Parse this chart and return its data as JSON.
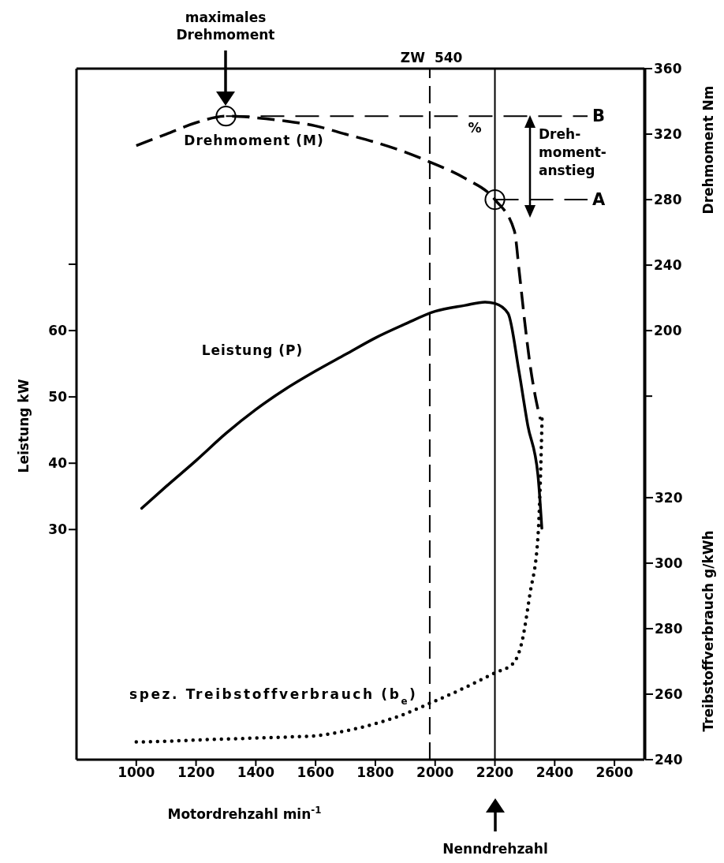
{
  "chart_data": {
    "type": "line",
    "xlabel": "Motordrehzahl min$^{-1}$",
    "ylabel": "Leistung kW",
    "y2label": "Drehmoment Nm",
    "y3label": "Treibstoffverbrauch g/kWh",
    "xlim": [
      800,
      2700
    ],
    "xticks": [
      1000,
      1200,
      1400,
      1600,
      1800,
      2000,
      2200,
      2400,
      2600
    ],
    "ylim": [
      -4.7,
      99.5
    ],
    "yticks": [
      30,
      40,
      50,
      60,
      {
        "value": 70,
        "label": null
      }
    ],
    "y2lim": [
      -62,
      360
    ],
    "y2ticks": [
      {
        "value": 160,
        "label": null
      },
      200,
      240,
      280,
      320,
      360
    ],
    "y3lim": [
      240,
      451
    ],
    "y3ticks": [
      240,
      260,
      280,
      300,
      320
    ],
    "grid": false,
    "marker": "none",
    "series": [
      {
        "name": "Drehmoment (M)",
        "color": "#000000",
        "axis": "y2",
        "line_style": "dashed",
        "x": [
          1000,
          1100,
          1200,
          1300,
          1400,
          1500,
          1600,
          1700,
          1800,
          1900,
          1982,
          2100,
          2200,
          2265,
          2282,
          2300,
          2317,
          2335,
          2352
        ],
        "values": [
          313,
          320,
          327,
          331,
          330,
          328,
          325,
          320,
          315,
          309,
          303,
          293,
          280,
          261,
          235,
          205,
          180,
          160,
          146
        ]
      },
      {
        "name": "Leistung (P)",
        "color": "#000000",
        "axis": "y",
        "line_style": "solid",
        "x": [
          1018,
          1100,
          1200,
          1300,
          1400,
          1500,
          1600,
          1700,
          1800,
          1900,
          2000,
          2100,
          2167,
          2200,
          2244,
          2280,
          2310,
          2344,
          2357
        ],
        "values": [
          33.2,
          36.5,
          40.4,
          44.5,
          48.1,
          51.2,
          53.9,
          56.4,
          58.9,
          61,
          62.9,
          63.8,
          64.3,
          64.1,
          62.6,
          54,
          45.7,
          38.2,
          30.2
        ]
      },
      {
        "name": "spez. Treibstoffverbrauch (b$_{e}$)",
        "color": "#000000",
        "axis": "y3",
        "line_style": "dotted",
        "x": [
          1000,
          1100,
          1200,
          1300,
          1400,
          1500,
          1600,
          1700,
          1800,
          1900,
          1982,
          2100,
          2200,
          2259,
          2291,
          2317,
          2344,
          2352,
          2358
        ],
        "values": [
          245.4,
          245.6,
          246,
          246.3,
          246.6,
          246.9,
          247.3,
          248.8,
          251,
          254,
          257.2,
          262,
          266.5,
          269.2,
          276.2,
          290.5,
          308,
          325,
          345
        ]
      },
      {
        "type": "scatter",
        "color": "#000000",
        "axis": "y2",
        "marker": "circle",
        "x": [
          1300,
          2200
        ],
        "values": [
          331,
          280
        ]
      }
    ],
    "ref_lines": [
      {
        "axis": "x",
        "value": 1982,
        "label": "ZW 540",
        "line_style": "dashed"
      },
      {
        "axis": "x",
        "value": 2200,
        "line_style": "solid"
      },
      {
        "axis": "y2",
        "value": 331,
        "label": "B",
        "line_style": "dashed"
      },
      {
        "axis": "y2",
        "value": 280,
        "label": "A",
        "line_style": "dashed"
      }
    ],
    "annotations": [
      "maximales\nDrehmoment",
      "Nenndrehzahl",
      "%",
      "Dreh-\nmoment-\nanstieg"
    ]
  }
}
